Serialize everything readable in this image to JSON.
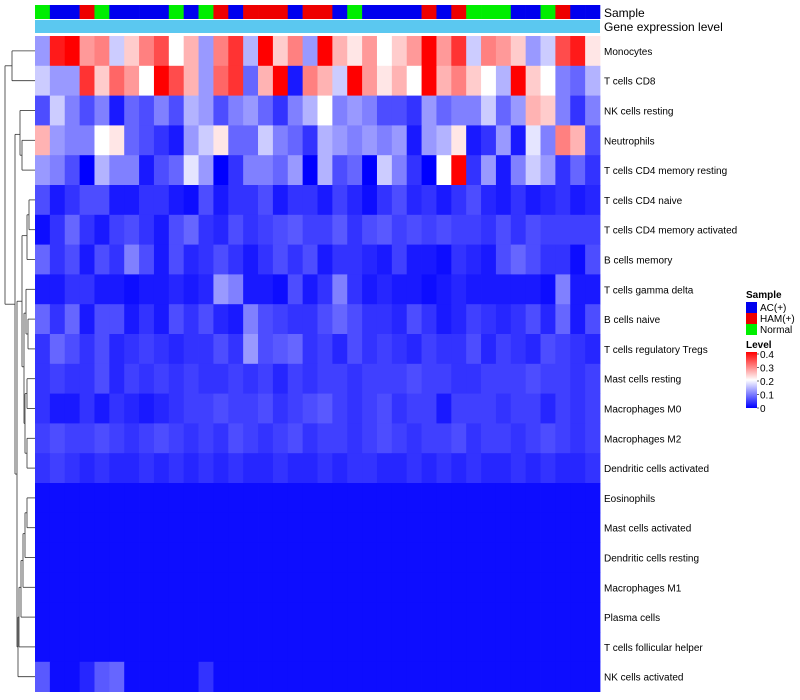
{
  "chart_data": {
    "type": "heatmap",
    "title": "",
    "row_labels": [
      "Monocytes",
      "T cells CD8",
      "NK cells resting",
      "Neutrophils",
      "T cells CD4 memory resting",
      "T cells CD4 naive",
      "T cells CD4 memory activated",
      "B cells memory",
      "T cells gamma delta",
      "B cells naive",
      "T cells regulatory  Tregs",
      "Mast cells resting",
      "Macrophages M0",
      "Macrophages M2",
      "Dendritic cells activated",
      "Eosinophils",
      "Mast cells activated",
      "Dendritic cells resting",
      "Macrophages M1",
      "Plasma cells",
      "T cells follicular helper",
      "NK cells activated"
    ],
    "sample_groups": [
      "Normal",
      "AC(+)",
      "AC(+)",
      "HAM(+)",
      "Normal",
      "AC(+)",
      "AC(+)",
      "AC(+)",
      "AC(+)",
      "Normal",
      "AC(+)",
      "Normal",
      "HAM(+)",
      "AC(+)",
      "HAM(+)",
      "HAM(+)",
      "HAM(+)",
      "AC(+)",
      "HAM(+)",
      "HAM(+)",
      "AC(+)",
      "Normal",
      "AC(+)",
      "AC(+)",
      "AC(+)",
      "AC(+)",
      "HAM(+)",
      "AC(+)",
      "HAM(+)",
      "Normal",
      "Normal",
      "Normal",
      "AC(+)",
      "AC(+)",
      "Normal",
      "HAM(+)",
      "AC(+)",
      "AC(+)"
    ],
    "values": [
      [
        0.12,
        0.38,
        0.4,
        0.28,
        0.3,
        0.16,
        0.24,
        0.3,
        0.34,
        0.2,
        0.26,
        0.12,
        0.3,
        0.36,
        0.14,
        0.4,
        0.24,
        0.3,
        0.12,
        0.4,
        0.26,
        0.22,
        0.28,
        0.2,
        0.24,
        0.28,
        0.4,
        0.28,
        0.36,
        0.16,
        0.3,
        0.28,
        0.24,
        0.12,
        0.16,
        0.34,
        0.38,
        0.22
      ],
      [
        0.16,
        0.12,
        0.12,
        0.36,
        0.24,
        0.32,
        0.28,
        0.2,
        0.4,
        0.34,
        0.26,
        0.12,
        0.32,
        0.36,
        0.08,
        0.26,
        0.4,
        0.02,
        0.3,
        0.26,
        0.16,
        0.4,
        0.28,
        0.22,
        0.26,
        0.2,
        0.4,
        0.26,
        0.3,
        0.24,
        0.2,
        0.14,
        0.4,
        0.24,
        0.2,
        0.1,
        0.08,
        0.14
      ],
      [
        0.06,
        0.16,
        0.1,
        0.06,
        0.1,
        0.02,
        0.08,
        0.06,
        0.1,
        0.06,
        0.14,
        0.12,
        0.06,
        0.1,
        0.12,
        0.08,
        0.04,
        0.1,
        0.14,
        0.2,
        0.1,
        0.12,
        0.1,
        0.06,
        0.06,
        0.04,
        0.12,
        0.08,
        0.1,
        0.1,
        0.16,
        0.08,
        0.12,
        0.26,
        0.24,
        0.1,
        0.04,
        0.1
      ],
      [
        0.26,
        0.12,
        0.1,
        0.1,
        0.2,
        0.22,
        0.08,
        0.06,
        0.04,
        0.02,
        0.12,
        0.16,
        0.22,
        0.08,
        0.08,
        0.16,
        0.1,
        0.08,
        0.04,
        0.14,
        0.12,
        0.1,
        0.12,
        0.1,
        0.12,
        0.02,
        0.12,
        0.14,
        0.22,
        0.02,
        0.04,
        0.12,
        0.02,
        0.18,
        0.1,
        0.3,
        0.26,
        0.06
      ],
      [
        0.12,
        0.1,
        0.06,
        0.0,
        0.14,
        0.1,
        0.1,
        0.02,
        0.06,
        0.08,
        0.18,
        0.12,
        0.0,
        0.04,
        0.1,
        0.1,
        0.08,
        0.12,
        0.0,
        0.14,
        0.06,
        0.08,
        0.0,
        0.16,
        0.1,
        0.04,
        0.0,
        0.2,
        0.4,
        0.04,
        0.12,
        0.02,
        0.1,
        0.16,
        0.12,
        0.04,
        0.08,
        0.04
      ],
      [
        0.06,
        0.02,
        0.04,
        0.06,
        0.06,
        0.02,
        0.02,
        0.04,
        0.04,
        0.02,
        0.01,
        0.06,
        0.02,
        0.04,
        0.04,
        0.06,
        0.02,
        0.04,
        0.04,
        0.02,
        0.05,
        0.03,
        0.01,
        0.04,
        0.06,
        0.03,
        0.04,
        0.02,
        0.04,
        0.06,
        0.03,
        0.02,
        0.04,
        0.02,
        0.03,
        0.04,
        0.02,
        0.03
      ],
      [
        0.01,
        0.04,
        0.08,
        0.04,
        0.02,
        0.05,
        0.06,
        0.04,
        0.02,
        0.06,
        0.08,
        0.04,
        0.03,
        0.06,
        0.04,
        0.05,
        0.06,
        0.07,
        0.05,
        0.05,
        0.07,
        0.04,
        0.06,
        0.07,
        0.05,
        0.06,
        0.05,
        0.06,
        0.05,
        0.05,
        0.04,
        0.06,
        0.04,
        0.06,
        0.05,
        0.05,
        0.05,
        0.05
      ],
      [
        0.08,
        0.04,
        0.06,
        0.02,
        0.06,
        0.04,
        0.1,
        0.06,
        0.02,
        0.06,
        0.03,
        0.04,
        0.06,
        0.04,
        0.02,
        0.04,
        0.06,
        0.04,
        0.06,
        0.02,
        0.04,
        0.04,
        0.03,
        0.02,
        0.05,
        0.02,
        0.02,
        0.01,
        0.04,
        0.03,
        0.02,
        0.06,
        0.08,
        0.06,
        0.04,
        0.04,
        0.01,
        0.06
      ],
      [
        0.02,
        0.02,
        0.04,
        0.04,
        0.02,
        0.02,
        0.01,
        0.02,
        0.02,
        0.03,
        0.02,
        0.03,
        0.12,
        0.1,
        0.02,
        0.02,
        0.01,
        0.06,
        0.02,
        0.04,
        0.1,
        0.04,
        0.02,
        0.03,
        0.02,
        0.02,
        0.01,
        0.02,
        0.03,
        0.02,
        0.02,
        0.02,
        0.02,
        0.02,
        0.01,
        0.1,
        0.02,
        0.02
      ],
      [
        0.08,
        0.04,
        0.08,
        0.02,
        0.06,
        0.06,
        0.02,
        0.04,
        0.02,
        0.06,
        0.04,
        0.06,
        0.03,
        0.02,
        0.1,
        0.06,
        0.05,
        0.04,
        0.04,
        0.06,
        0.08,
        0.06,
        0.04,
        0.04,
        0.03,
        0.06,
        0.04,
        0.02,
        0.03,
        0.05,
        0.04,
        0.03,
        0.04,
        0.06,
        0.03,
        0.08,
        0.02,
        0.06
      ],
      [
        0.04,
        0.08,
        0.06,
        0.04,
        0.06,
        0.03,
        0.04,
        0.05,
        0.04,
        0.03,
        0.04,
        0.04,
        0.06,
        0.04,
        0.12,
        0.06,
        0.07,
        0.08,
        0.04,
        0.05,
        0.03,
        0.06,
        0.04,
        0.05,
        0.04,
        0.03,
        0.05,
        0.04,
        0.04,
        0.06,
        0.03,
        0.05,
        0.04,
        0.03,
        0.06,
        0.05,
        0.04,
        0.03
      ],
      [
        0.04,
        0.05,
        0.04,
        0.04,
        0.06,
        0.03,
        0.05,
        0.04,
        0.05,
        0.04,
        0.05,
        0.04,
        0.04,
        0.05,
        0.04,
        0.05,
        0.03,
        0.05,
        0.04,
        0.05,
        0.05,
        0.04,
        0.05,
        0.05,
        0.05,
        0.06,
        0.05,
        0.05,
        0.04,
        0.04,
        0.05,
        0.05,
        0.05,
        0.06,
        0.05,
        0.05,
        0.04,
        0.05
      ],
      [
        0.04,
        0.02,
        0.02,
        0.04,
        0.02,
        0.04,
        0.03,
        0.02,
        0.03,
        0.04,
        0.05,
        0.05,
        0.06,
        0.05,
        0.05,
        0.06,
        0.04,
        0.05,
        0.06,
        0.07,
        0.05,
        0.04,
        0.05,
        0.06,
        0.04,
        0.05,
        0.05,
        0.02,
        0.05,
        0.05,
        0.05,
        0.04,
        0.05,
        0.05,
        0.03,
        0.05,
        0.04,
        0.05
      ],
      [
        0.05,
        0.06,
        0.05,
        0.05,
        0.06,
        0.05,
        0.04,
        0.05,
        0.06,
        0.05,
        0.04,
        0.05,
        0.04,
        0.06,
        0.05,
        0.04,
        0.05,
        0.06,
        0.04,
        0.05,
        0.05,
        0.04,
        0.05,
        0.06,
        0.05,
        0.04,
        0.05,
        0.05,
        0.06,
        0.04,
        0.05,
        0.05,
        0.04,
        0.05,
        0.06,
        0.05,
        0.04,
        0.05
      ],
      [
        0.04,
        0.05,
        0.04,
        0.03,
        0.04,
        0.03,
        0.03,
        0.04,
        0.03,
        0.04,
        0.03,
        0.04,
        0.03,
        0.04,
        0.03,
        0.03,
        0.04,
        0.03,
        0.03,
        0.04,
        0.03,
        0.04,
        0.04,
        0.03,
        0.03,
        0.04,
        0.03,
        0.04,
        0.03,
        0.04,
        0.03,
        0.03,
        0.04,
        0.03,
        0.04,
        0.03,
        0.03,
        0.04
      ],
      [
        0.01,
        0.01,
        0.01,
        0.01,
        0.01,
        0.01,
        0.01,
        0.01,
        0.01,
        0.01,
        0.01,
        0.01,
        0.01,
        0.01,
        0.01,
        0.01,
        0.01,
        0.01,
        0.01,
        0.01,
        0.01,
        0.01,
        0.01,
        0.01,
        0.01,
        0.01,
        0.01,
        0.01,
        0.01,
        0.01,
        0.01,
        0.01,
        0.01,
        0.01,
        0.01,
        0.01,
        0.01,
        0.01
      ],
      [
        0.01,
        0.01,
        0.01,
        0.01,
        0.01,
        0.01,
        0.01,
        0.01,
        0.01,
        0.01,
        0.01,
        0.01,
        0.01,
        0.01,
        0.01,
        0.01,
        0.01,
        0.01,
        0.01,
        0.01,
        0.01,
        0.01,
        0.01,
        0.01,
        0.01,
        0.01,
        0.01,
        0.01,
        0.01,
        0.01,
        0.01,
        0.01,
        0.01,
        0.01,
        0.01,
        0.01,
        0.01,
        0.01
      ],
      [
        0.01,
        0.01,
        0.01,
        0.01,
        0.01,
        0.01,
        0.01,
        0.01,
        0.01,
        0.01,
        0.01,
        0.01,
        0.01,
        0.01,
        0.01,
        0.01,
        0.01,
        0.01,
        0.01,
        0.01,
        0.01,
        0.01,
        0.01,
        0.01,
        0.01,
        0.01,
        0.01,
        0.01,
        0.01,
        0.01,
        0.01,
        0.01,
        0.01,
        0.01,
        0.01,
        0.01,
        0.01,
        0.01
      ],
      [
        0.01,
        0.01,
        0.01,
        0.01,
        0.01,
        0.01,
        0.01,
        0.01,
        0.01,
        0.01,
        0.01,
        0.01,
        0.01,
        0.01,
        0.01,
        0.01,
        0.01,
        0.01,
        0.01,
        0.01,
        0.01,
        0.01,
        0.01,
        0.01,
        0.01,
        0.01,
        0.01,
        0.01,
        0.01,
        0.01,
        0.01,
        0.01,
        0.01,
        0.01,
        0.01,
        0.01,
        0.01,
        0.01
      ],
      [
        0.01,
        0.01,
        0.01,
        0.01,
        0.01,
        0.01,
        0.01,
        0.01,
        0.01,
        0.01,
        0.01,
        0.01,
        0.01,
        0.01,
        0.01,
        0.01,
        0.01,
        0.01,
        0.01,
        0.01,
        0.01,
        0.01,
        0.01,
        0.01,
        0.01,
        0.01,
        0.01,
        0.01,
        0.01,
        0.01,
        0.01,
        0.01,
        0.01,
        0.01,
        0.01,
        0.01,
        0.01,
        0.01
      ],
      [
        0.01,
        0.01,
        0.01,
        0.01,
        0.01,
        0.01,
        0.01,
        0.01,
        0.01,
        0.01,
        0.01,
        0.01,
        0.01,
        0.01,
        0.01,
        0.01,
        0.01,
        0.01,
        0.01,
        0.01,
        0.01,
        0.01,
        0.01,
        0.01,
        0.01,
        0.01,
        0.01,
        0.01,
        0.01,
        0.01,
        0.01,
        0.01,
        0.01,
        0.01,
        0.01,
        0.01,
        0.01,
        0.01
      ],
      [
        0.07,
        0.01,
        0.01,
        0.03,
        0.07,
        0.08,
        0.01,
        0.01,
        0.01,
        0.01,
        0.01,
        0.04,
        0.01,
        0.01,
        0.01,
        0.01,
        0.01,
        0.01,
        0.01,
        0.01,
        0.01,
        0.01,
        0.01,
        0.01,
        0.01,
        0.01,
        0.01,
        0.01,
        0.01,
        0.01,
        0.01,
        0.01,
        0.01,
        0.01,
        0.01,
        0.01,
        0.01,
        0.01
      ]
    ],
    "annotation_row_labels": [
      "Sample",
      "Gene expression level"
    ],
    "annotation_colors": {
      "AC(+)": "#0000ee",
      "HAM(+)": "#ee0000",
      "Normal": "#00ee00",
      "Gene expression level": "#5bc8f0"
    },
    "legend_sample": {
      "title": "Sample",
      "entries": [
        "AC(+)",
        "HAM(+)",
        "Normal"
      ]
    },
    "legend_level": {
      "title": "Level",
      "ticks": [
        "0.4",
        "0.3",
        "0.2",
        "0.1",
        "0"
      ],
      "range": [
        0,
        0.4
      ]
    },
    "color_scale": {
      "low": "#0000ff",
      "mid": "#ffffff",
      "high": "#ff0000",
      "domain": [
        0,
        0.2,
        0.4
      ]
    }
  }
}
